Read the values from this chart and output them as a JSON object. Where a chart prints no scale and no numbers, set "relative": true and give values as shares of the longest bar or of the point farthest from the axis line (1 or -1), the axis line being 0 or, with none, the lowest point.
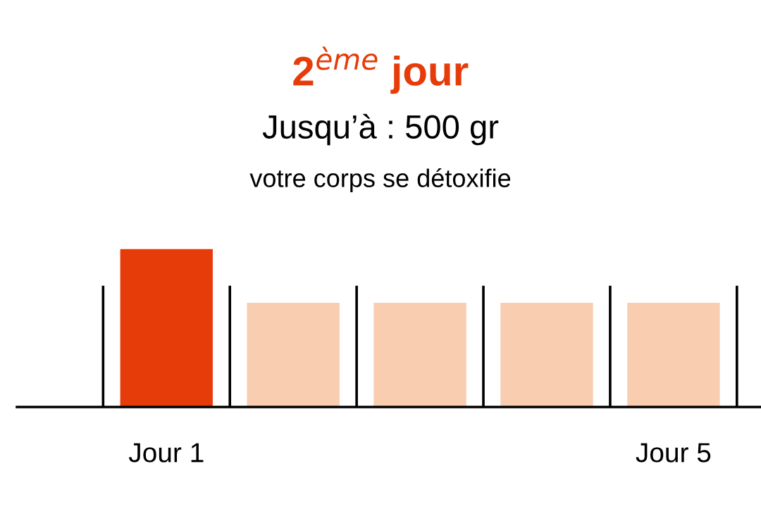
{
  "chart_data": {
    "type": "bar",
    "relative": true,
    "title": "2$^{ème}$ jour",
    "subtitle": "Jusqu’à : 500 gr",
    "annotations": [
      "votre corps se détoxifie"
    ],
    "categories": [
      "Jour 1",
      null,
      null,
      null,
      "Jour 5"
    ],
    "values": [
      1,
      0.66,
      0.66,
      0.66,
      0.66
    ],
    "colors": [
      "#e63c0a",
      "#f9cdb0",
      "#f9cdb0",
      "#f9cdb0",
      "#f9cdb0"
    ],
    "grid": false,
    "legend": false
  }
}
